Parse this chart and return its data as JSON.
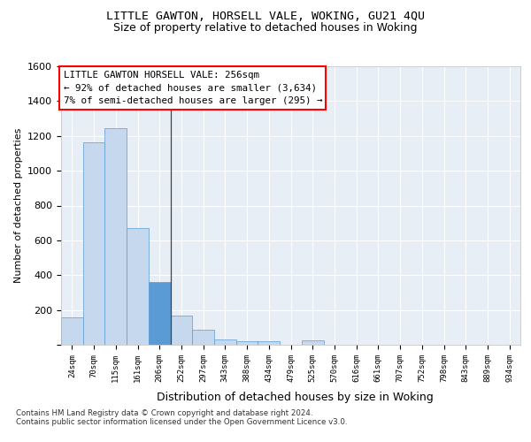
{
  "title1": "LITTLE GAWTON, HORSELL VALE, WOKING, GU21 4QU",
  "title2": "Size of property relative to detached houses in Woking",
  "xlabel": "Distribution of detached houses by size in Woking",
  "ylabel": "Number of detached properties",
  "bar_labels": [
    "24sqm",
    "70sqm",
    "115sqm",
    "161sqm",
    "206sqm",
    "252sqm",
    "297sqm",
    "343sqm",
    "388sqm",
    "434sqm",
    "479sqm",
    "525sqm",
    "570sqm",
    "616sqm",
    "661sqm",
    "707sqm",
    "752sqm",
    "798sqm",
    "843sqm",
    "889sqm",
    "934sqm"
  ],
  "bar_values": [
    155,
    1165,
    1245,
    670,
    360,
    170,
    85,
    30,
    22,
    18,
    0,
    25,
    0,
    0,
    0,
    0,
    0,
    0,
    0,
    0,
    0
  ],
  "bar_color_normal": "#c5d8ed",
  "bar_color_highlight": "#5b9bd5",
  "bar_edge_color": "#5b9bd5",
  "highlight_index": 4,
  "annotation_text": "LITTLE GAWTON HORSELL VALE: 256sqm\n← 92% of detached houses are smaller (3,634)\n7% of semi-detached houses are larger (295) →",
  "annotation_box_color": "white",
  "annotation_box_edge": "red",
  "vline_x": 4.5,
  "ylim": [
    0,
    1600
  ],
  "yticks": [
    0,
    200,
    400,
    600,
    800,
    1000,
    1200,
    1400,
    1600
  ],
  "footer1": "Contains HM Land Registry data © Crown copyright and database right 2024.",
  "footer2": "Contains public sector information licensed under the Open Government Licence v3.0.",
  "bg_color": "#e8eef5",
  "fig_bg_color": "#ffffff"
}
